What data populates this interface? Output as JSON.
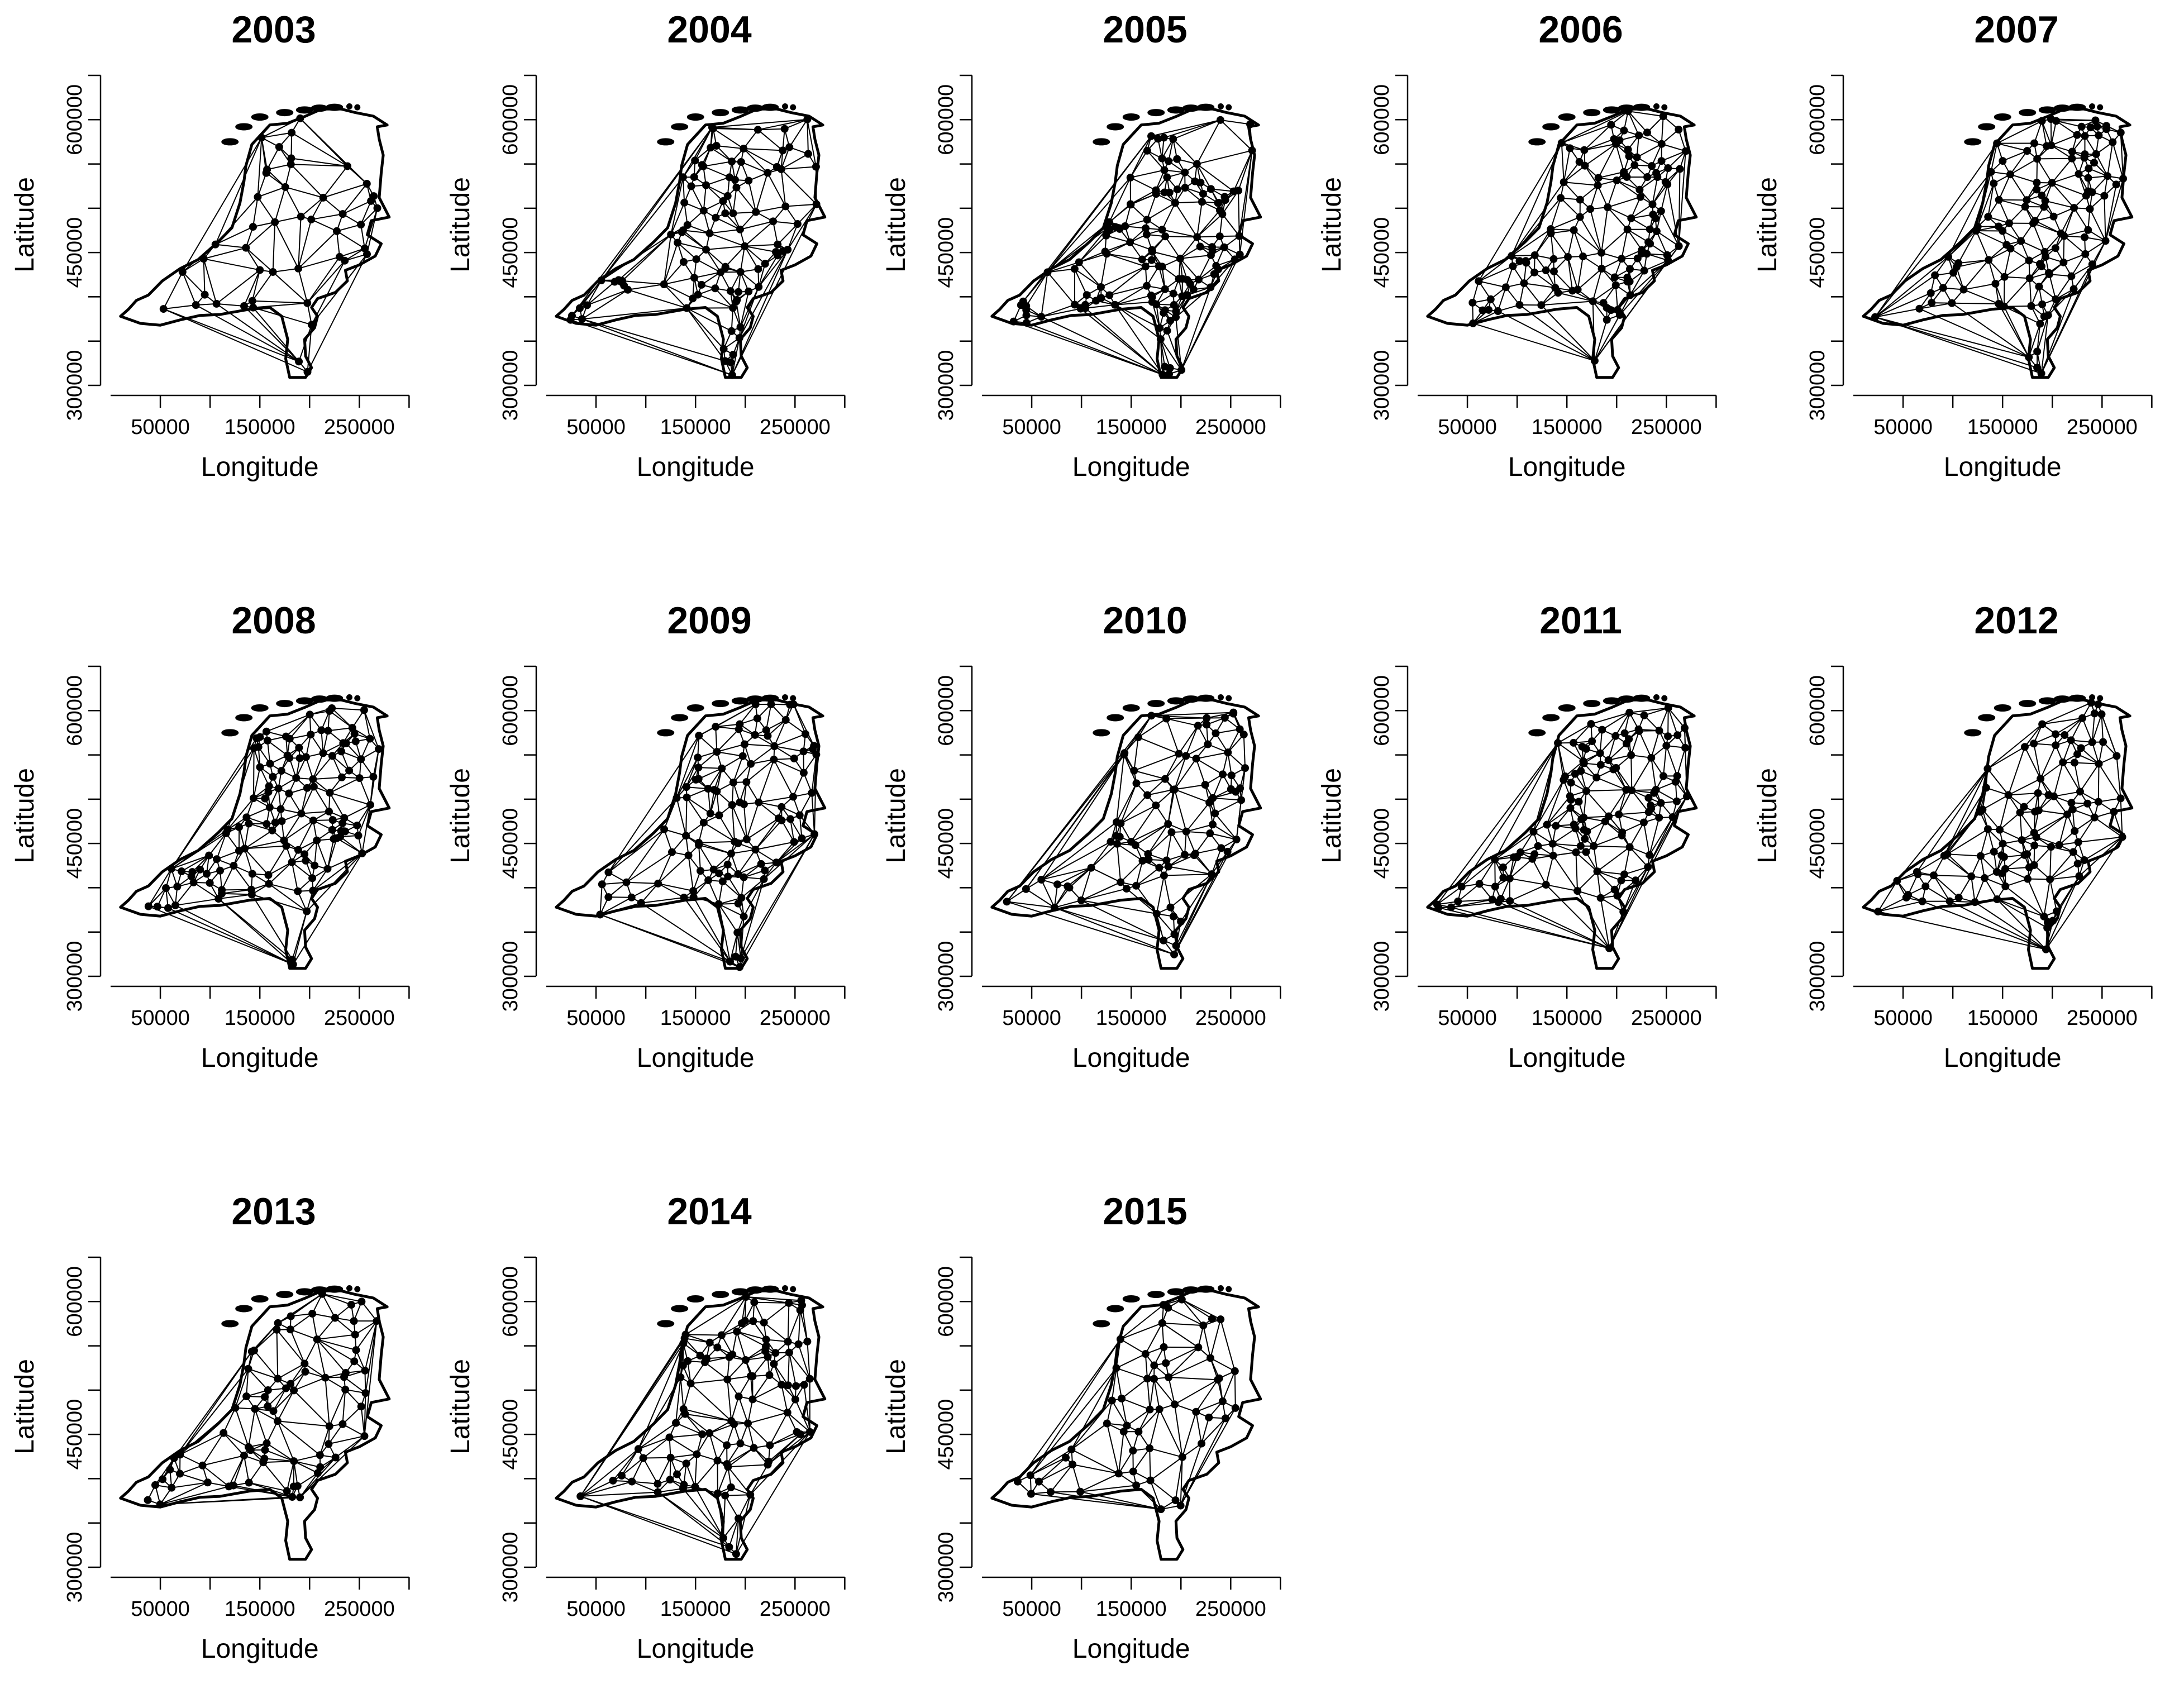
{
  "panels": [
    {
      "title": "2003",
      "n": 45
    },
    {
      "title": "2004",
      "n": 95
    },
    {
      "title": "2005",
      "n": 125
    },
    {
      "title": "2006",
      "n": 110
    },
    {
      "title": "2007",
      "n": 110
    },
    {
      "title": "2008",
      "n": 120
    },
    {
      "title": "2009",
      "n": 100
    },
    {
      "title": "2010",
      "n": 85
    },
    {
      "title": "2011",
      "n": 115
    },
    {
      "title": "2012",
      "n": 95
    },
    {
      "title": "2013",
      "n": 75
    },
    {
      "title": "2014",
      "n": 95
    },
    {
      "title": "2015",
      "n": 55
    }
  ],
  "x_axis": {
    "label": "Longitude",
    "range": [
      0,
      320000
    ],
    "ticks": [
      50000,
      100000,
      150000,
      200000,
      250000,
      300000
    ],
    "labeled_ticks": [
      50000,
      150000,
      250000
    ]
  },
  "y_axis": {
    "label": "Latitude",
    "range": [
      300000,
      650000
    ],
    "ticks": [
      300000,
      350000,
      400000,
      450000,
      500000,
      550000,
      600000,
      650000
    ],
    "labeled_ticks": [
      300000,
      450000,
      600000
    ]
  }
}
